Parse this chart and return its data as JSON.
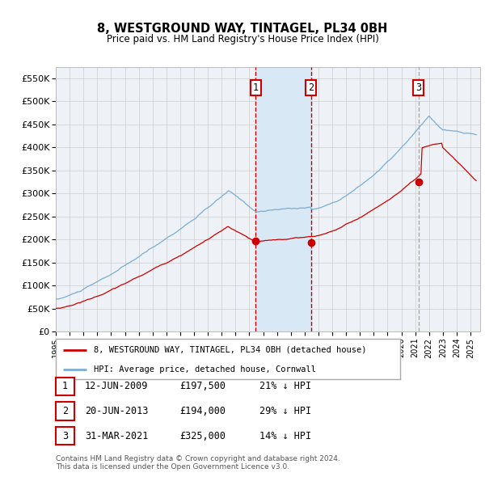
{
  "title": "8, WESTGROUND WAY, TINTAGEL, PL34 0BH",
  "subtitle": "Price paid vs. HM Land Registry's House Price Index (HPI)",
  "ylabel_ticks": [
    "£0",
    "£50K",
    "£100K",
    "£150K",
    "£200K",
    "£250K",
    "£300K",
    "£350K",
    "£400K",
    "£450K",
    "£500K",
    "£550K"
  ],
  "ytick_vals": [
    0,
    50000,
    100000,
    150000,
    200000,
    250000,
    300000,
    350000,
    400000,
    450000,
    500000,
    550000
  ],
  "ylim": [
    0,
    575000
  ],
  "xlim_start": 1995.0,
  "xlim_end": 2025.7,
  "sale_dates": [
    2009.45,
    2013.47,
    2021.25
  ],
  "sale_prices": [
    197500,
    194000,
    325000
  ],
  "sale_labels": [
    "1",
    "2",
    "3"
  ],
  "background_color": "#ffffff",
  "plot_bg_color": "#eef2f7",
  "grid_color": "#cccccc",
  "red_line_color": "#cc0000",
  "blue_line_color": "#7aadd4",
  "highlight_fill": "#d8e8f4",
  "vline_color_dashed": "#cc0000",
  "vline3_color": "#aaaaaa",
  "legend_border_color": "#aaaaaa",
  "table_border_color": "#cc0000",
  "footnote": "Contains HM Land Registry data © Crown copyright and database right 2024.\nThis data is licensed under the Open Government Licence v3.0.",
  "legend_line1": "8, WESTGROUND WAY, TINTAGEL, PL34 0BH (detached house)",
  "legend_line2": "HPI: Average price, detached house, Cornwall",
  "table_rows": [
    [
      "1",
      "12-JUN-2009",
      "£197,500",
      "21% ↓ HPI"
    ],
    [
      "2",
      "20-JUN-2013",
      "£194,000",
      "29% ↓ HPI"
    ],
    [
      "3",
      "31-MAR-2021",
      "£325,000",
      "14% ↓ HPI"
    ]
  ]
}
